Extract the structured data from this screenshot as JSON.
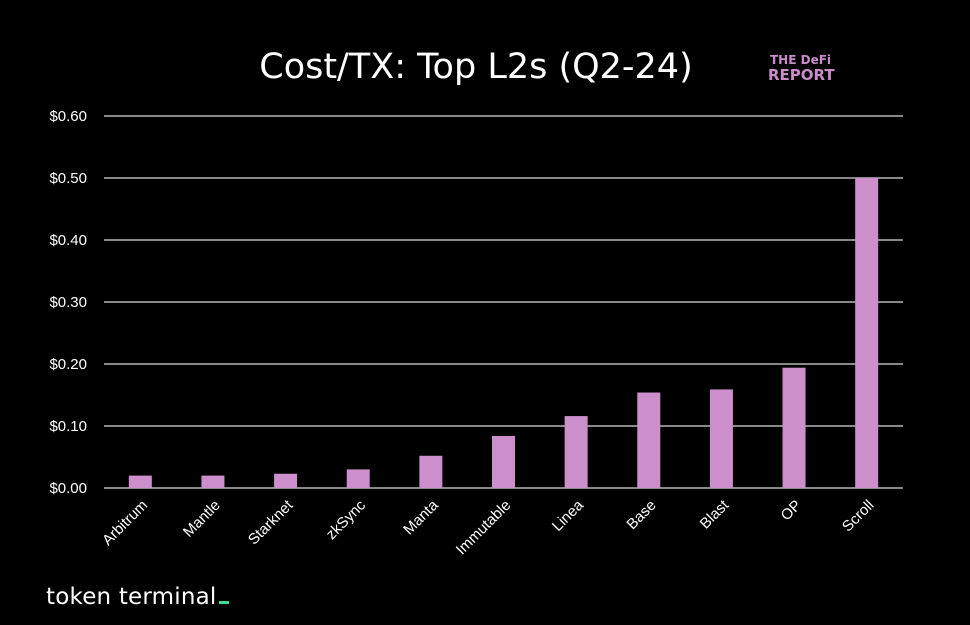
{
  "chart_data": {
    "type": "bar",
    "title": "Cost/TX: Top L2s (Q2-24)",
    "categories": [
      "Arbitrum",
      "Mantle",
      "Starknet",
      "zkSync",
      "Manta",
      "Immutable",
      "Linea",
      "Base",
      "Blast",
      "OP",
      "Scroll"
    ],
    "values": [
      0.02,
      0.02,
      0.023,
      0.03,
      0.052,
      0.084,
      0.116,
      0.154,
      0.159,
      0.194,
      0.5
    ],
    "y_ticks": [
      "$0.00",
      "$0.10",
      "$0.20",
      "$0.30",
      "$0.40",
      "$0.50",
      "$0.60"
    ],
    "ylim": [
      0,
      0.6
    ],
    "grid": true,
    "bar_color": "#cc8fcc"
  },
  "logo": {
    "line1": "THE DeFi",
    "line2": "REPORT",
    "color": "#c98cc9"
  },
  "footer": {
    "brand": "token terminal"
  }
}
